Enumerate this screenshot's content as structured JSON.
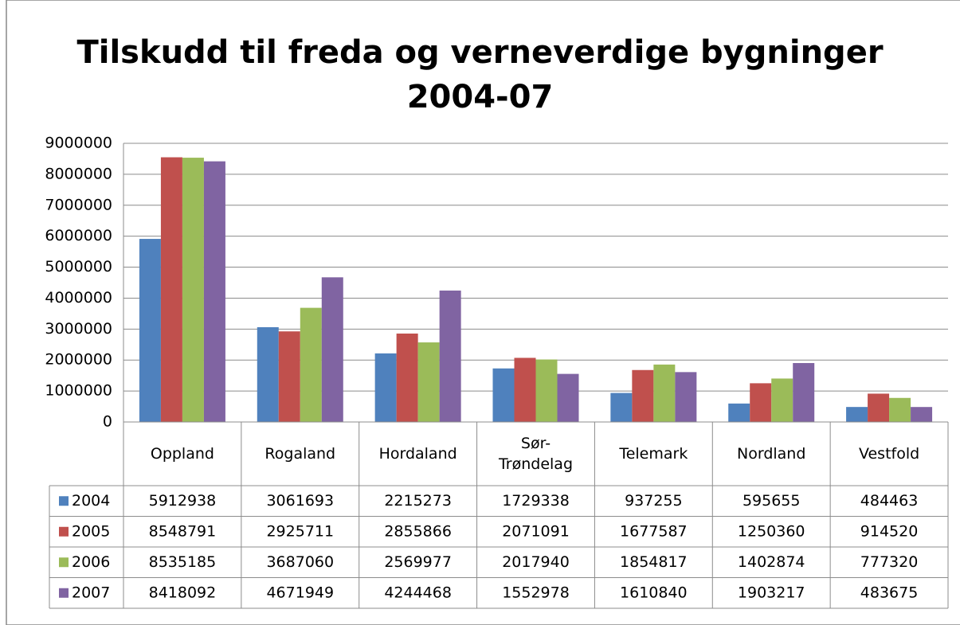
{
  "chart_data": {
    "type": "bar",
    "title": "Tilskudd til freda og verneverdige bygninger\n2004-07",
    "categories": [
      "Oppland",
      "Rogaland",
      "Hordaland",
      "Sør-Trøndelag",
      "Telemark",
      "Nordland",
      "Vestfold"
    ],
    "series": [
      {
        "name": "2004",
        "color": "#4f81bd",
        "values": [
          5912938,
          3061693,
          2215273,
          1729338,
          937255,
          595655,
          484463
        ]
      },
      {
        "name": "2005",
        "color": "#c0504d",
        "values": [
          8548791,
          2925711,
          2855866,
          2071091,
          1677587,
          1250360,
          914520
        ]
      },
      {
        "name": "2006",
        "color": "#9bbb59",
        "values": [
          8535185,
          3687060,
          2569977,
          2017940,
          1854817,
          1402874,
          777320
        ]
      },
      {
        "name": "2007",
        "color": "#8064a2",
        "values": [
          8418092,
          4671949,
          4244468,
          1552978,
          1610840,
          1903217,
          483675
        ]
      }
    ],
    "ylim": [
      0,
      9000000
    ],
    "yticks": [
      0,
      1000000,
      2000000,
      3000000,
      4000000,
      5000000,
      6000000,
      7000000,
      8000000,
      9000000
    ],
    "grid": true
  }
}
